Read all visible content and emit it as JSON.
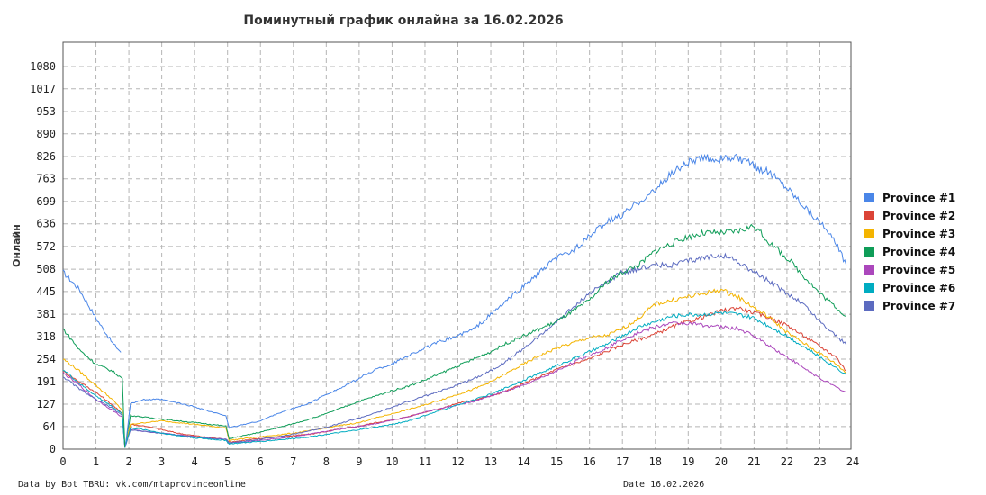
{
  "chart_data": {
    "type": "line",
    "title": "Поминутный график онлайна за 16.02.2026",
    "ylabel": "Онлайн",
    "xlabel": "",
    "footer_left": "Data by Bot TBRU: vk.com/mtaprovinceonline",
    "footer_right": "Date 16.02.2026",
    "x_ticks": [
      "0",
      "1",
      "2",
      "3",
      "4",
      "5",
      "6",
      "7",
      "8",
      "9",
      "10",
      "11",
      "12",
      "13",
      "14",
      "15",
      "16",
      "17",
      "18",
      "19",
      "20",
      "21",
      "22",
      "23",
      "24"
    ],
    "y_ticks": [
      "0",
      "64",
      "127",
      "191",
      "254",
      "318",
      "381",
      "445",
      "508",
      "572",
      "636",
      "699",
      "763",
      "826",
      "890",
      "953",
      "1017",
      "1080"
    ],
    "xlim": [
      0,
      24
    ],
    "ylim": [
      0,
      1080
    ],
    "grid": true,
    "legend_position": "right",
    "x": [
      0,
      0.5,
      1,
      1.5,
      1.8,
      1.88,
      2.05,
      2.5,
      3,
      3.5,
      4,
      4.5,
      4.95,
      5.05,
      5.5,
      6,
      6.5,
      7,
      7.5,
      8,
      8.5,
      9,
      9.5,
      10,
      10.5,
      11,
      11.5,
      12,
      12.5,
      13,
      13.5,
      14,
      14.5,
      15,
      15.5,
      16,
      16.5,
      17,
      17.5,
      18,
      18.5,
      19,
      19.5,
      20,
      20.5,
      21,
      21.5,
      22,
      22.5,
      23,
      23.5,
      23.8
    ],
    "series": [
      {
        "name": "Province #1",
        "color": "#4a86e8",
        "values": [
          500,
          450,
          370,
          300,
          270,
          null,
          null,
          null,
          null,
          null,
          null,
          null,
          null,
          null,
          null,
          null,
          null,
          null,
          null,
          null,
          null,
          null,
          null,
          null,
          null,
          null,
          null,
          null,
          null,
          null,
          null,
          null,
          null,
          null,
          null,
          null,
          null,
          null,
          null,
          null,
          null,
          null,
          null,
          null,
          null,
          null,
          null,
          null,
          null,
          null,
          null,
          null
        ],
        "segment2": {
          "x": [
            1.9,
            2.05,
            2.5,
            3,
            3.5,
            4,
            4.5,
            4.95,
            5.05,
            5.5,
            6,
            6.5,
            7,
            7.5,
            8,
            8.5,
            9,
            9.5,
            10,
            10.5,
            11,
            11.5,
            12,
            12.5,
            13,
            13.5,
            14,
            14.5,
            15,
            15.5,
            16,
            16.5,
            17,
            17.5,
            18,
            18.5,
            19,
            19.5,
            20,
            20.5,
            21,
            21.5,
            22,
            22.5,
            23,
            23.5,
            23.8
          ],
          "values": [
            10,
            130,
            140,
            140,
            130,
            120,
            105,
            95,
            60,
            70,
            80,
            100,
            115,
            130,
            155,
            175,
            200,
            225,
            240,
            265,
            285,
            305,
            320,
            340,
            380,
            420,
            460,
            500,
            540,
            560,
            600,
            640,
            660,
            700,
            730,
            780,
            810,
            820,
            820,
            820,
            800,
            780,
            740,
            690,
            640,
            580,
            520
          ]
        }
      },
      {
        "name": "Province #2",
        "color": "#db4437",
        "values": [
          220,
          190,
          160,
          125,
          100,
          5,
          70,
          65,
          55,
          45,
          38,
          32,
          28,
          20,
          25,
          30,
          35,
          38,
          42,
          50,
          58,
          65,
          75,
          82,
          92,
          105,
          115,
          130,
          140,
          150,
          165,
          185,
          205,
          225,
          240,
          255,
          275,
          295,
          310,
          325,
          345,
          360,
          375,
          390,
          400,
          385,
          370,
          350,
          320,
          290,
          260,
          220
        ]
      },
      {
        "name": "Province #3",
        "color": "#f4b400",
        "values": [
          255,
          220,
          180,
          140,
          110,
          5,
          70,
          75,
          80,
          75,
          70,
          65,
          60,
          25,
          30,
          35,
          40,
          45,
          52,
          60,
          68,
          75,
          88,
          100,
          112,
          125,
          140,
          155,
          170,
          190,
          215,
          240,
          265,
          285,
          300,
          315,
          320,
          340,
          370,
          410,
          420,
          430,
          440,
          450,
          430,
          400,
          370,
          330,
          300,
          270,
          240,
          215
        ]
      },
      {
        "name": "Province #4",
        "color": "#0f9d58",
        "values": [
          340,
          280,
          240,
          220,
          200,
          5,
          95,
          90,
          85,
          80,
          75,
          70,
          65,
          30,
          38,
          48,
          60,
          72,
          85,
          100,
          118,
          135,
          150,
          165,
          178,
          195,
          215,
          235,
          255,
          275,
          300,
          320,
          340,
          360,
          390,
          420,
          470,
          500,
          520,
          560,
          580,
          600,
          610,
          610,
          615,
          630,
          580,
          540,
          490,
          440,
          400,
          375
        ]
      },
      {
        "name": "Province #5",
        "color": "#ab47bc",
        "values": [
          215,
          180,
          140,
          110,
          90,
          5,
          55,
          50,
          45,
          40,
          35,
          30,
          28,
          18,
          20,
          25,
          30,
          35,
          42,
          50,
          58,
          65,
          72,
          82,
          92,
          105,
          115,
          125,
          135,
          150,
          165,
          180,
          200,
          220,
          245,
          265,
          285,
          310,
          330,
          345,
          355,
          355,
          350,
          345,
          340,
          320,
          290,
          260,
          230,
          200,
          175,
          160
        ]
      },
      {
        "name": "Province #6",
        "color": "#00acc1",
        "values": [
          225,
          185,
          150,
          120,
          100,
          5,
          60,
          55,
          45,
          38,
          32,
          28,
          25,
          15,
          18,
          22,
          26,
          30,
          35,
          42,
          48,
          55,
          62,
          70,
          80,
          95,
          110,
          125,
          140,
          155,
          175,
          195,
          215,
          235,
          255,
          275,
          295,
          320,
          345,
          360,
          375,
          380,
          380,
          385,
          380,
          370,
          345,
          320,
          290,
          260,
          230,
          210
        ]
      },
      {
        "name": "Province #7",
        "color": "#5c6bc0",
        "values": [
          205,
          170,
          140,
          115,
          95,
          5,
          55,
          50,
          45,
          40,
          35,
          30,
          28,
          18,
          22,
          28,
          35,
          42,
          52,
          62,
          75,
          88,
          102,
          118,
          135,
          150,
          165,
          182,
          200,
          222,
          250,
          285,
          320,
          360,
          400,
          440,
          470,
          500,
          510,
          520,
          520,
          530,
          540,
          550,
          530,
          500,
          470,
          440,
          410,
          360,
          320,
          295
        ]
      }
    ]
  }
}
